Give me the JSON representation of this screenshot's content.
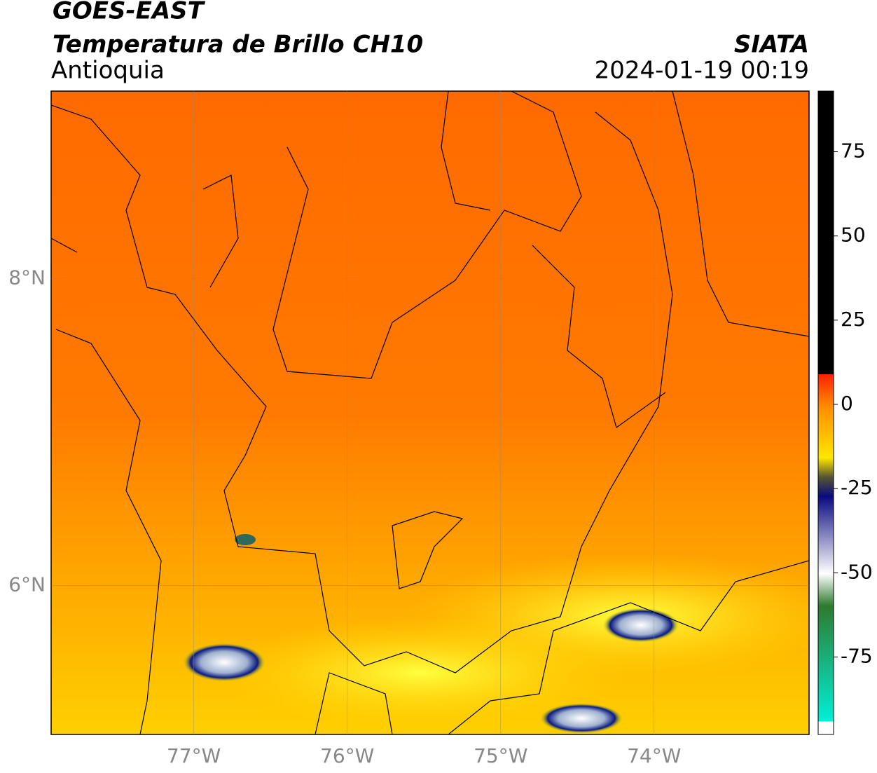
{
  "header": {
    "title": "GOES-EAST",
    "subtitle": "Temperatura de Brillo CH10",
    "region": "Antioquia",
    "source": "SIATA",
    "timestamp": "2024-01-19 00:19"
  },
  "map": {
    "xlim": [
      -77.93,
      -72.99
    ],
    "ylim": [
      5.03,
      9.22
    ],
    "xticks": [
      {
        "value": -77,
        "label": "77°W"
      },
      {
        "value": -76,
        "label": "76°W"
      },
      {
        "value": -75,
        "label": "75°W"
      },
      {
        "value": -74,
        "label": "74°W"
      }
    ],
    "yticks": [
      {
        "value": 6,
        "label": "6°N"
      },
      {
        "value": 8,
        "label": "8°N"
      }
    ],
    "grid": true
  },
  "colorbar": {
    "lim": [
      -98,
      93
    ],
    "ticks": [
      75,
      50,
      25,
      0,
      -25,
      -50,
      -75
    ]
  }
}
